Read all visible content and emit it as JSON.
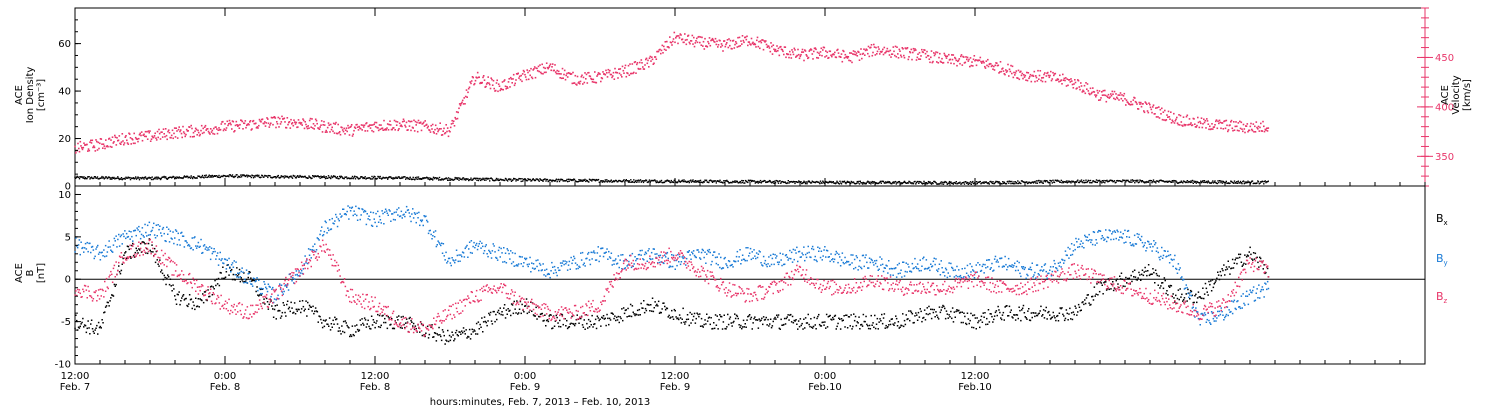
{
  "chart_data": [
    {
      "type": "scatter",
      "panel": "top",
      "ylabel_lines": [
        "ACE",
        "Ion Density",
        "[cm⁻³]"
      ],
      "ylim": [
        0,
        75
      ],
      "yticks": [
        0,
        20,
        40,
        60
      ],
      "y2label_lines": [
        "ACE",
        "Velocity",
        "[km/s]"
      ],
      "y2lim": [
        320,
        500
      ],
      "y2ticks": [
        350,
        400,
        450
      ],
      "y2_color": "#e8366a",
      "series": [
        {
          "name": "Ion Density",
          "axis": "left",
          "color": "#000000",
          "x_hours": [
            0,
            6,
            12,
            18,
            24,
            30,
            36,
            42,
            48,
            54,
            60,
            66,
            72,
            78,
            84,
            90,
            95.5
          ],
          "y": [
            3.5,
            3.2,
            4.2,
            3.8,
            3.5,
            3.0,
            2.5,
            2.2,
            2.0,
            1.8,
            1.5,
            1.4,
            1.3,
            1.8,
            2.0,
            1.7,
            1.5
          ]
        },
        {
          "name": "Velocity",
          "axis": "right",
          "color": "#e8366a",
          "x_hours": [
            0,
            2,
            4,
            6,
            8,
            10,
            12,
            14,
            16,
            18,
            20,
            22,
            24,
            26,
            28,
            30,
            32,
            34,
            36,
            38,
            40,
            42,
            44,
            46,
            48,
            50,
            52,
            54,
            56,
            58,
            60,
            62,
            64,
            66,
            68,
            70,
            72,
            74,
            76,
            78,
            80,
            82,
            84,
            86,
            88,
            90,
            92,
            94,
            95.5
          ],
          "y": [
            358,
            362,
            368,
            370,
            374,
            376,
            380,
            382,
            385,
            384,
            380,
            376,
            381,
            382,
            380,
            376,
            430,
            420,
            432,
            440,
            428,
            430,
            436,
            445,
            470,
            465,
            462,
            468,
            458,
            452,
            455,
            450,
            458,
            455,
            452,
            447,
            446,
            440,
            432,
            430,
            424,
            412,
            408,
            398,
            388,
            383,
            381,
            379,
            380
          ]
        }
      ]
    },
    {
      "type": "scatter",
      "panel": "bottom",
      "ylabel_lines": [
        "ACE",
        "B",
        "[nT]"
      ],
      "ylim": [
        -10,
        11
      ],
      "yticks": [
        -10,
        -5,
        0,
        5,
        10
      ],
      "series": [
        {
          "name": "B",
          "subscript": "x",
          "color": "#000000",
          "x_hours": [
            0,
            2,
            4,
            6,
            8,
            10,
            12,
            14,
            16,
            18,
            20,
            22,
            24,
            26,
            28,
            30,
            32,
            34,
            36,
            38,
            40,
            42,
            44,
            46,
            48,
            50,
            52,
            54,
            56,
            58,
            60,
            62,
            64,
            66,
            68,
            70,
            72,
            74,
            76,
            78,
            80,
            82,
            84,
            86,
            88,
            90,
            92,
            94,
            95.5
          ],
          "y": [
            -5,
            -6,
            3,
            4,
            -2,
            -3,
            1,
            0,
            -4,
            -3,
            -5,
            -6,
            -5,
            -5,
            -6,
            -7,
            -6,
            -4,
            -3,
            -5,
            -5,
            -5,
            -4,
            -3,
            -4,
            -5,
            -5,
            -5,
            -5,
            -5,
            -5,
            -5,
            -5,
            -5,
            -4,
            -4,
            -5,
            -4,
            -4,
            -4,
            -4,
            -1,
            0,
            1,
            -2,
            -2,
            1,
            3,
            1
          ]
        },
        {
          "name": "B",
          "subscript": "y",
          "color": "#1a7bd6",
          "x_hours": [
            0,
            2,
            4,
            6,
            8,
            10,
            12,
            14,
            16,
            18,
            20,
            22,
            24,
            26,
            28,
            30,
            32,
            34,
            36,
            38,
            40,
            42,
            44,
            46,
            48,
            50,
            52,
            54,
            56,
            58,
            60,
            62,
            64,
            66,
            68,
            70,
            72,
            74,
            76,
            78,
            80,
            82,
            84,
            86,
            88,
            90,
            92,
            94,
            95.5
          ],
          "y": [
            4,
            3,
            5,
            6,
            5,
            4,
            2,
            0,
            -2,
            1,
            6,
            8,
            7,
            8,
            7,
            2,
            4,
            3,
            2,
            1,
            2,
            3,
            2,
            3,
            2,
            3,
            2,
            3,
            2,
            3,
            3,
            2,
            2,
            1,
            2,
            1,
            1,
            2,
            1,
            1,
            4,
            5,
            5,
            4,
            2,
            -5,
            -4,
            -2,
            -1
          ]
        },
        {
          "name": "B",
          "subscript": "z",
          "color": "#e8366a",
          "x_hours": [
            0,
            2,
            4,
            6,
            8,
            10,
            12,
            14,
            16,
            18,
            20,
            22,
            24,
            26,
            28,
            30,
            32,
            34,
            36,
            38,
            40,
            42,
            44,
            46,
            48,
            50,
            52,
            54,
            56,
            58,
            60,
            62,
            64,
            66,
            68,
            70,
            72,
            74,
            76,
            78,
            80,
            82,
            84,
            86,
            88,
            90,
            92,
            94,
            95.5
          ],
          "y": [
            -1,
            -2,
            3,
            4,
            1,
            -1,
            -3,
            -4,
            -2,
            1,
            4,
            -2,
            -3,
            -5,
            -6,
            -4,
            -2,
            -1,
            -3,
            -4,
            -4,
            -3,
            2,
            2,
            3,
            1,
            -1,
            -2,
            -1,
            1,
            -1,
            -1,
            0,
            -1,
            -1,
            -1,
            0,
            -1,
            -1,
            0,
            1,
            0,
            -1,
            -2,
            -3,
            -4,
            -3,
            2,
            1
          ]
        }
      ]
    }
  ],
  "x_axis": {
    "range_hours": [
      0,
      108
    ],
    "ticks": [
      {
        "hour": 0,
        "time": "12:00",
        "date": "Feb. 7"
      },
      {
        "hour": 12,
        "time": "0:00",
        "date": "Feb. 8"
      },
      {
        "hour": 24,
        "time": "12:00",
        "date": "Feb. 8"
      },
      {
        "hour": 36,
        "time": "0:00",
        "date": "Feb. 9"
      },
      {
        "hour": 48,
        "time": "12:00",
        "date": "Feb. 9"
      },
      {
        "hour": 60,
        "time": "0:00",
        "date": "Feb.10"
      },
      {
        "hour": 72,
        "time": "12:00",
        "date": "Feb.10"
      }
    ],
    "xlabel": "hours:minutes, Feb.  7, 2013 – Feb. 10, 2013"
  }
}
